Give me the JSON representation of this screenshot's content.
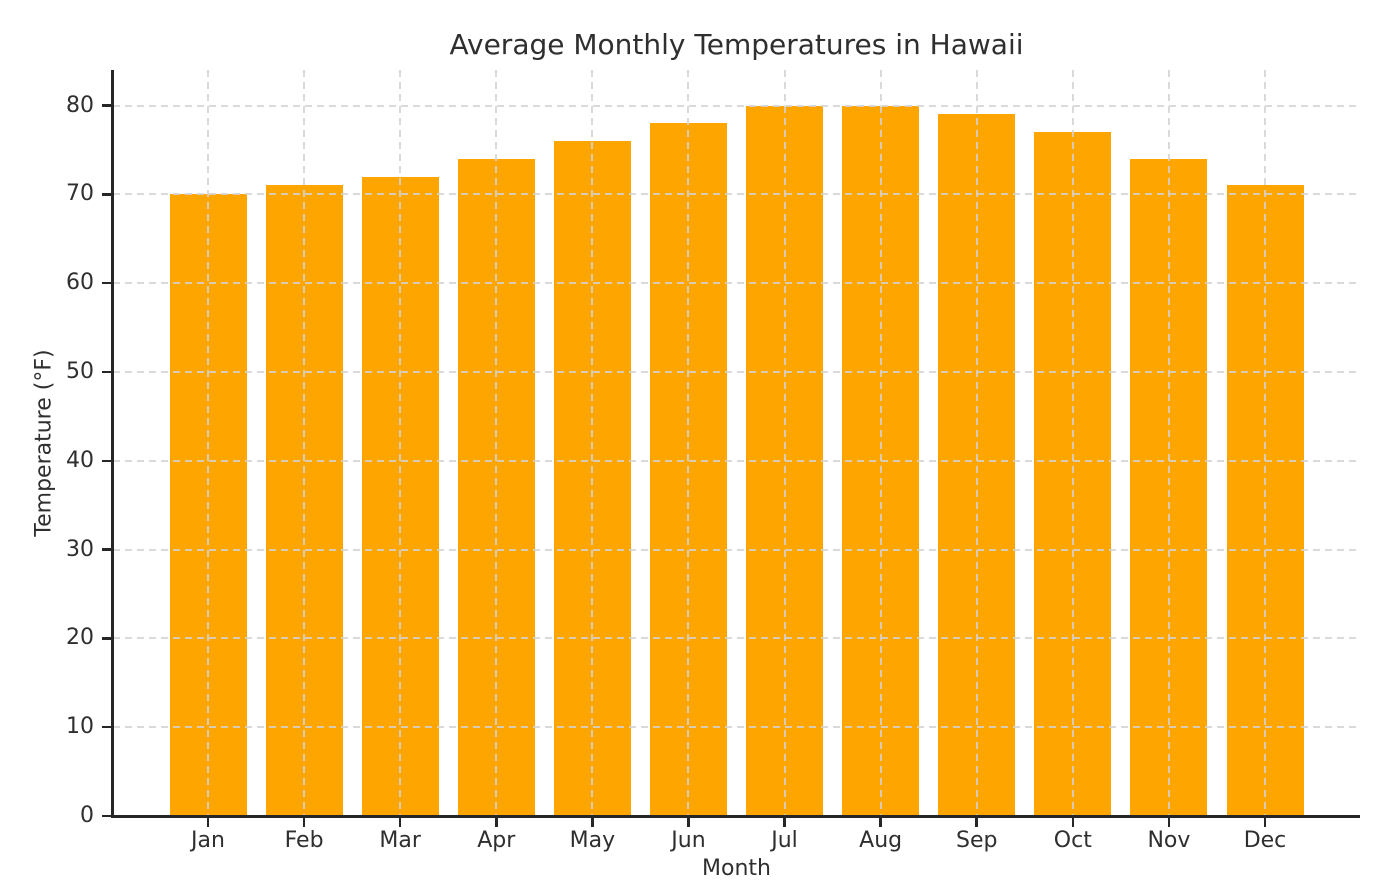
{
  "chart_data": {
    "type": "bar",
    "title": "Average Monthly Temperatures in Hawaii",
    "xlabel": "Month",
    "ylabel": "Temperature (°F)",
    "categories": [
      "Jan",
      "Feb",
      "Mar",
      "Apr",
      "May",
      "Jun",
      "Jul",
      "Aug",
      "Sep",
      "Oct",
      "Nov",
      "Dec"
    ],
    "values": [
      70,
      71,
      72,
      74,
      76,
      78,
      80,
      80,
      79,
      77,
      74,
      71
    ],
    "ylim": [
      0,
      84
    ],
    "yticks": [
      0,
      10,
      20,
      30,
      40,
      50,
      60,
      70,
      80
    ],
    "bar_color": "#FFA500",
    "grid": true,
    "grid_style": "dashed",
    "grid_color": "#d3d3d3",
    "legend": "none",
    "background": "#ffffff",
    "text_color": "#2f2f2f",
    "spine_color": "#262626"
  }
}
